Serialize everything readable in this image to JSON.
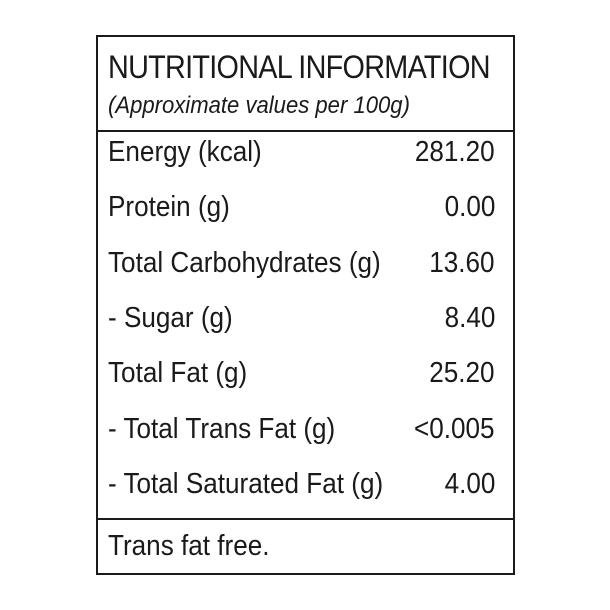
{
  "header": {
    "title": "NUTRITIONAL INFORMATION",
    "subtitle": "(Approximate values per 100g)"
  },
  "nutrients": [
    {
      "label": "Energy (kcal)",
      "value": "281.20"
    },
    {
      "label": "Protein (g)",
      "value": "0.00"
    },
    {
      "label": "Total Carbohydrates (g)",
      "value": "13.60"
    },
    {
      "label": "- Sugar (g)",
      "value": "8.40"
    },
    {
      "label": "Total Fat (g)",
      "value": "25.20"
    },
    {
      "label": "- Total Trans Fat (g)",
      "value": "<0.005"
    },
    {
      "label": "- Total Saturated Fat (g)",
      "value": "4.00"
    }
  ],
  "footer": {
    "note": "Trans fat free."
  },
  "colors": {
    "text": "#1a1a1a",
    "border": "#1a1a1a",
    "background": "#ffffff"
  }
}
